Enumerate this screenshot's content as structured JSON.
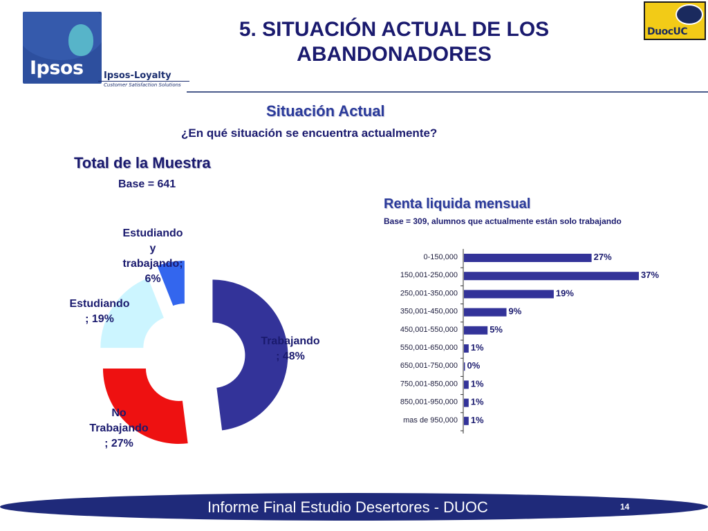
{
  "header": {
    "title_line1": "5. SITUACIÓN ACTUAL DE LOS",
    "title_line2": "ABANDONADORES",
    "logo_left": {
      "brand": "Ipsos",
      "sub1": "Ipsos-Loyalty",
      "sub2": "Customer Satisfaction Solutions"
    },
    "logo_right": {
      "brand": "DuocUC"
    }
  },
  "section": {
    "title": "Situación Actual",
    "question": "¿En qué situación se encuentra actualmente?"
  },
  "colors": {
    "navy": "#333399",
    "red": "#ee1111",
    "light_cyan": "#ccf5ff",
    "blue": "#3366ee",
    "text": "#1a1a6e",
    "footer": "#1f2a7a"
  },
  "chart_data": [
    {
      "type": "pie",
      "title": "Total de la Muestra",
      "subtitle": "Base = 641",
      "categories": [
        "Trabajando",
        "No Trabajando",
        "Estudiando",
        "Estudiando y trabajando"
      ],
      "values": [
        48,
        27,
        19,
        6
      ],
      "unit": "%",
      "colors": [
        "#333399",
        "#ee1111",
        "#ccf5ff",
        "#3366ee"
      ],
      "labels": [
        [
          "Trabajando",
          "; 48%"
        ],
        [
          "No",
          "Trabajando",
          "; 27%"
        ],
        [
          "Estudiando",
          "; 19%"
        ],
        [
          "Estudiando",
          "y",
          "trabajando;",
          "6%"
        ]
      ]
    },
    {
      "type": "bar",
      "orientation": "horizontal",
      "title": "Renta liquida mensual",
      "subtitle": "Base = 309, alumnos que actualmente están solo trabajando",
      "categories": [
        "0-150,000",
        "150,001-250,000",
        "250,001-350,000",
        "350,001-450,000",
        "450,001-550,000",
        "550,001-650,000",
        "650,001-750,000",
        "750,001-850,000",
        "850,001-950,000",
        "mas de 950,000"
      ],
      "values": [
        27,
        37,
        19,
        9,
        5,
        1,
        0,
        1,
        1,
        1
      ],
      "value_labels": [
        "27%",
        "37%",
        "19%",
        "9%",
        "5%",
        "1%",
        "0%",
        "1%",
        "1%",
        "1%"
      ],
      "xlim": [
        0,
        37
      ],
      "color": "#333399"
    }
  ],
  "footer": {
    "text": "Informe Final Estudio Desertores - DUOC",
    "page": "14"
  }
}
